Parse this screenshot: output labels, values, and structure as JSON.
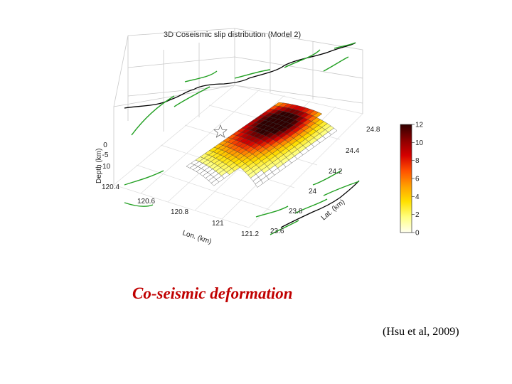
{
  "chart_data": {
    "type": "surface3d",
    "title": "3D Coseismic slip distribution (Model 2)",
    "xlabel": "Lon. (km)",
    "ylabel": "Lat. (km)",
    "zlabel": "Depth (km)",
    "x_ticks": [
      "120.4",
      "120.6",
      "120.8",
      "121",
      "121.2"
    ],
    "y_ticks": [
      "23.6",
      "23.8",
      "24",
      "24.2",
      "24.4",
      "24.8"
    ],
    "z_ticks": [
      "0",
      "-5",
      "-10"
    ],
    "xlim": [
      120.4,
      121.2
    ],
    "ylim": [
      23.6,
      24.8
    ],
    "zlim": [
      -12,
      0
    ],
    "colorbar": {
      "ticks": [
        "0",
        "2",
        "4",
        "6",
        "8",
        "10",
        "12"
      ],
      "range": [
        0,
        12
      ],
      "colors": [
        "#fffff0",
        "#ffff80",
        "#ffe000",
        "#ffa000",
        "#ff5000",
        "#d40000",
        "#8a0000",
        "#300000"
      ]
    },
    "grid": true
  },
  "caption": "Co-seismic deformation",
  "citation": "(Hsu et al, 2009)",
  "colors": {
    "caption": "#c00000",
    "fault_lines": "#22a022",
    "coastline": "#000000"
  }
}
